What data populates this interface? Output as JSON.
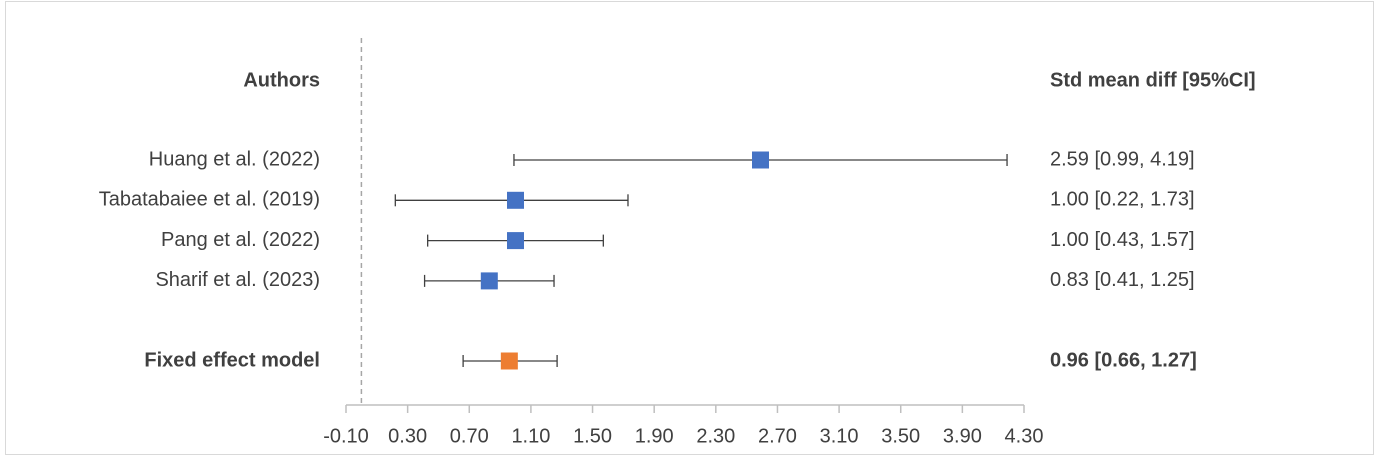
{
  "chart_data": {
    "type": "forest",
    "label_header": "Authors",
    "value_header": "Std mean diff [95%CI]",
    "studies": [
      {
        "label": "Huang et al. (2022)",
        "value": 2.59,
        "lower": 0.99,
        "upper": 4.19,
        "value_label": "2.59 [0.99, 4.19]"
      },
      {
        "label": "Tabatabaiee et al. (2019)",
        "value": 1.0,
        "lower": 0.22,
        "upper": 1.73,
        "value_label": "1.00 [0.22, 1.73]"
      },
      {
        "label": "Pang et al. (2022)",
        "value": 1.0,
        "lower": 0.43,
        "upper": 1.57,
        "value_label": "1.00 [0.43, 1.57]"
      },
      {
        "label": "Sharif et al. (2023)",
        "value": 0.83,
        "lower": 0.41,
        "upper": 1.25,
        "value_label": "0.83 [0.41, 1.25]"
      }
    ],
    "study_color": "#4472c4",
    "summary": {
      "label": "Fixed effect model",
      "value": 0.96,
      "lower": 0.66,
      "upper": 1.27,
      "value_label": "0.96 [0.66, 1.27]"
    },
    "summary_color": "#ed7d31",
    "reference_line": 0,
    "xlim": [
      -0.1,
      4.3
    ],
    "xticks": [
      {
        "value": -0.1,
        "label": "-0.10"
      },
      {
        "value": 0.3,
        "label": "0.30"
      },
      {
        "value": 0.7,
        "label": "0.70"
      },
      {
        "value": 1.1,
        "label": "1.10"
      },
      {
        "value": 1.5,
        "label": "1.50"
      },
      {
        "value": 1.9,
        "label": "1.90"
      },
      {
        "value": 2.3,
        "label": "2.30"
      },
      {
        "value": 2.7,
        "label": "2.70"
      },
      {
        "value": 3.1,
        "label": "3.10"
      },
      {
        "value": 3.5,
        "label": "3.50"
      },
      {
        "value": 3.9,
        "label": "3.90"
      },
      {
        "value": 4.3,
        "label": "4.30"
      }
    ]
  }
}
